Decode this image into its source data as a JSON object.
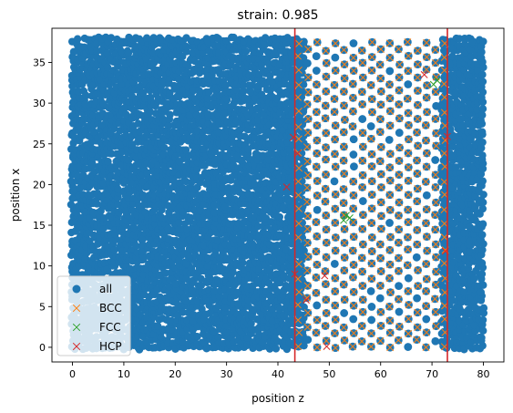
{
  "chart_data": {
    "type": "scatter",
    "title": "strain: 0.985",
    "xlabel": "position z",
    "ylabel": "position x",
    "xlim": [
      -4.0,
      84.0
    ],
    "ylim": [
      -1.8,
      39.2
    ],
    "xticks": [
      0,
      10,
      20,
      30,
      40,
      50,
      60,
      70,
      80
    ],
    "yticks": [
      0,
      5,
      10,
      15,
      20,
      25,
      30,
      35
    ],
    "xtick_labels": [
      "0",
      "10",
      "20",
      "30",
      "40",
      "50",
      "60",
      "70",
      "80"
    ],
    "ytick_labels": [
      "0",
      "5",
      "10",
      "15",
      "20",
      "25",
      "30",
      "35"
    ],
    "grid": false,
    "legend": {
      "placement": "lower-left",
      "entries": [
        "all",
        "BCC",
        "FCC",
        "HCP"
      ]
    },
    "vertical_lines": {
      "x": [
        43.3,
        73.0
      ],
      "color": "#d62728"
    },
    "dense_region": {
      "x": [
        0,
        80
      ],
      "y": [
        0,
        38
      ]
    },
    "bcc_region": {
      "x": [
        44,
        73
      ],
      "y": [
        0,
        38
      ]
    },
    "series": [
      {
        "name": "all",
        "marker": "circle",
        "color": "#1f77b4"
      },
      {
        "name": "BCC",
        "marker": "x",
        "color": "#ff7f0e"
      },
      {
        "name": "FCC",
        "marker": "x",
        "color": "#2ca02c",
        "points": [
          [
            70.3,
            32.3
          ],
          [
            71.0,
            32.8
          ],
          [
            53.3,
            16.2
          ],
          [
            54.0,
            15.9
          ],
          [
            52.8,
            15.6
          ]
        ]
      },
      {
        "name": "HCP",
        "marker": "x",
        "color": "#d62728",
        "points": [
          [
            41.7,
            19.7
          ],
          [
            43.0,
            25.8
          ],
          [
            43.3,
            9.0
          ],
          [
            45.5,
            5.8
          ],
          [
            49.1,
            8.8
          ],
          [
            49.5,
            0.1
          ],
          [
            68.5,
            33.5
          ],
          [
            72.6,
            11.8
          ],
          [
            73.0,
            25.9
          ],
          [
            43.8,
            23.8
          ]
        ]
      }
    ]
  }
}
